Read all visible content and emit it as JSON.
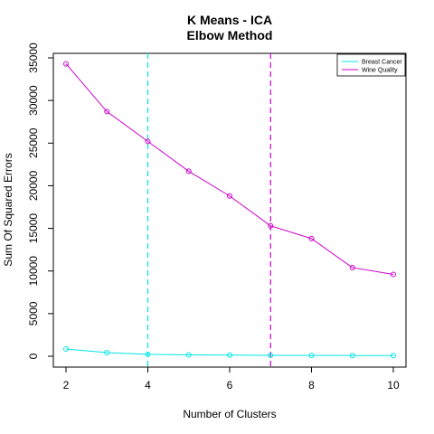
{
  "chart_data": {
    "type": "line",
    "title": "K Means - ICA",
    "subtitle": "Elbow Method",
    "xlabel": "Number of Clusters",
    "ylabel": "Sum Of Squared Errors",
    "xlim": [
      2,
      10
    ],
    "ylim": [
      0,
      35000
    ],
    "xticks": [
      2,
      4,
      6,
      8,
      10
    ],
    "yticks": [
      0,
      5000,
      10000,
      15000,
      20000,
      25000,
      30000,
      35000
    ],
    "x": [
      2,
      3,
      4,
      5,
      6,
      7,
      8,
      9,
      10
    ],
    "series": [
      {
        "name": "Breast Cancer",
        "color": "#00e5e5",
        "values": [
          850,
          420,
          230,
          160,
          130,
          110,
          95,
          85,
          75
        ]
      },
      {
        "name": "Wine Quality",
        "color": "#cc00cc",
        "values": [
          34300,
          28700,
          25200,
          21700,
          18800,
          15300,
          13800,
          10400,
          9600
        ]
      }
    ],
    "vlines": [
      {
        "x": 4,
        "color": "#00e5e5",
        "style": "dashed"
      },
      {
        "x": 7,
        "color": "#cc00cc",
        "style": "dashed"
      }
    ],
    "grid": false,
    "legend_position": "top-right"
  }
}
